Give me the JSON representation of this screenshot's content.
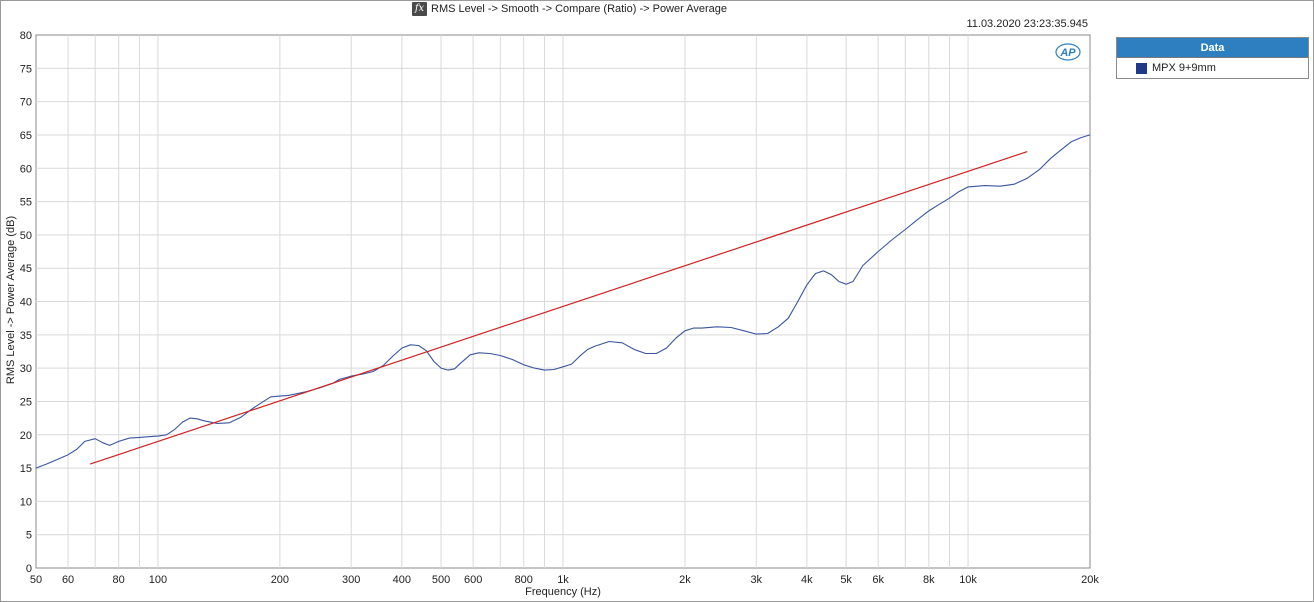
{
  "header": {
    "fx_label": "fx",
    "title": "RMS Level -> Smooth -> Compare (Ratio) -> Power Average"
  },
  "timestamp": "11.03.2020 23:23:35.945",
  "logo_text": "AP",
  "legend": {
    "title": "Data",
    "items": [
      {
        "label": "MPX 9+9mm",
        "color": "#1f3a8a"
      }
    ]
  },
  "chart_data": {
    "type": "line",
    "title": "RMS Level -> Smooth -> Compare (Ratio) -> Power Average",
    "xlabel": "Frequency (Hz)",
    "ylabel": "RMS Level -> Power Average (dB)",
    "x_scale": "log",
    "xlim": [
      50,
      20000
    ],
    "ylim": [
      0,
      80
    ],
    "grid": true,
    "legend_placement": "right",
    "x_ticks": [
      {
        "value": 50,
        "label": "50"
      },
      {
        "value": 60,
        "label": "60"
      },
      {
        "value": 80,
        "label": "80"
      },
      {
        "value": 100,
        "label": "100"
      },
      {
        "value": 200,
        "label": "200"
      },
      {
        "value": 300,
        "label": "300"
      },
      {
        "value": 400,
        "label": "400"
      },
      {
        "value": 500,
        "label": "500"
      },
      {
        "value": 600,
        "label": "600"
      },
      {
        "value": 800,
        "label": "800"
      },
      {
        "value": 1000,
        "label": "1k"
      },
      {
        "value": 2000,
        "label": "2k"
      },
      {
        "value": 3000,
        "label": "3k"
      },
      {
        "value": 4000,
        "label": "4k"
      },
      {
        "value": 5000,
        "label": "5k"
      },
      {
        "value": 6000,
        "label": "6k"
      },
      {
        "value": 8000,
        "label": "8k"
      },
      {
        "value": 10000,
        "label": "10k"
      },
      {
        "value": 20000,
        "label": "20k"
      }
    ],
    "x_minor_gridlines": [
      70,
      90,
      700,
      900,
      7000,
      9000
    ],
    "y_ticks": [
      0,
      5,
      10,
      15,
      20,
      25,
      30,
      35,
      40,
      45,
      50,
      55,
      60,
      65,
      70,
      75,
      80
    ],
    "series": [
      {
        "name": "MPX 9+9mm",
        "color": "#3a55a0",
        "points": [
          [
            50,
            15.0
          ],
          [
            53,
            15.6
          ],
          [
            56,
            16.2
          ],
          [
            60,
            17.0
          ],
          [
            63,
            17.8
          ],
          [
            66,
            19.0
          ],
          [
            70,
            19.4
          ],
          [
            73,
            18.8
          ],
          [
            76,
            18.4
          ],
          [
            80,
            19.0
          ],
          [
            85,
            19.5
          ],
          [
            90,
            19.6
          ],
          [
            95,
            19.7
          ],
          [
            100,
            19.8
          ],
          [
            105,
            20.0
          ],
          [
            110,
            20.8
          ],
          [
            115,
            21.9
          ],
          [
            120,
            22.5
          ],
          [
            125,
            22.4
          ],
          [
            130,
            22.1
          ],
          [
            140,
            21.7
          ],
          [
            150,
            21.8
          ],
          [
            160,
            22.6
          ],
          [
            170,
            23.8
          ],
          [
            180,
            24.8
          ],
          [
            190,
            25.7
          ],
          [
            200,
            25.8
          ],
          [
            210,
            25.9
          ],
          [
            230,
            26.4
          ],
          [
            250,
            27.0
          ],
          [
            270,
            27.7
          ],
          [
            280,
            28.3
          ],
          [
            300,
            28.8
          ],
          [
            320,
            29.1
          ],
          [
            340,
            29.5
          ],
          [
            360,
            30.4
          ],
          [
            380,
            31.8
          ],
          [
            400,
            33.0
          ],
          [
            420,
            33.5
          ],
          [
            440,
            33.4
          ],
          [
            460,
            32.6
          ],
          [
            480,
            31.0
          ],
          [
            500,
            30.0
          ],
          [
            520,
            29.7
          ],
          [
            540,
            29.9
          ],
          [
            560,
            30.8
          ],
          [
            590,
            32.0
          ],
          [
            620,
            32.3
          ],
          [
            660,
            32.2
          ],
          [
            700,
            31.9
          ],
          [
            750,
            31.3
          ],
          [
            800,
            30.5
          ],
          [
            850,
            30.0
          ],
          [
            900,
            29.7
          ],
          [
            950,
            29.8
          ],
          [
            1000,
            30.2
          ],
          [
            1050,
            30.6
          ],
          [
            1100,
            31.8
          ],
          [
            1150,
            32.8
          ],
          [
            1200,
            33.3
          ],
          [
            1300,
            34.0
          ],
          [
            1400,
            33.8
          ],
          [
            1500,
            32.8
          ],
          [
            1600,
            32.2
          ],
          [
            1700,
            32.2
          ],
          [
            1800,
            33.0
          ],
          [
            1900,
            34.5
          ],
          [
            2000,
            35.6
          ],
          [
            2100,
            36.0
          ],
          [
            2200,
            36.0
          ],
          [
            2400,
            36.2
          ],
          [
            2600,
            36.1
          ],
          [
            2800,
            35.6
          ],
          [
            3000,
            35.1
          ],
          [
            3200,
            35.2
          ],
          [
            3400,
            36.2
          ],
          [
            3600,
            37.5
          ],
          [
            3800,
            40.0
          ],
          [
            4000,
            42.5
          ],
          [
            4200,
            44.2
          ],
          [
            4400,
            44.6
          ],
          [
            4600,
            44.0
          ],
          [
            4800,
            43.0
          ],
          [
            5000,
            42.6
          ],
          [
            5200,
            43.0
          ],
          [
            5500,
            45.4
          ],
          [
            6000,
            47.5
          ],
          [
            6500,
            49.3
          ],
          [
            7000,
            50.8
          ],
          [
            7500,
            52.3
          ],
          [
            8000,
            53.6
          ],
          [
            8500,
            54.6
          ],
          [
            9000,
            55.5
          ],
          [
            9500,
            56.5
          ],
          [
            10000,
            57.2
          ],
          [
            11000,
            57.4
          ],
          [
            12000,
            57.3
          ],
          [
            13000,
            57.6
          ],
          [
            14000,
            58.5
          ],
          [
            15000,
            59.8
          ],
          [
            16000,
            61.5
          ],
          [
            17000,
            62.8
          ],
          [
            18000,
            64.0
          ],
          [
            19000,
            64.6
          ],
          [
            20000,
            65.0
          ]
        ]
      },
      {
        "name": "",
        "color": "#cc2222",
        "points": [
          [
            68,
            15.6
          ],
          [
            14000,
            62.5
          ]
        ]
      }
    ]
  }
}
